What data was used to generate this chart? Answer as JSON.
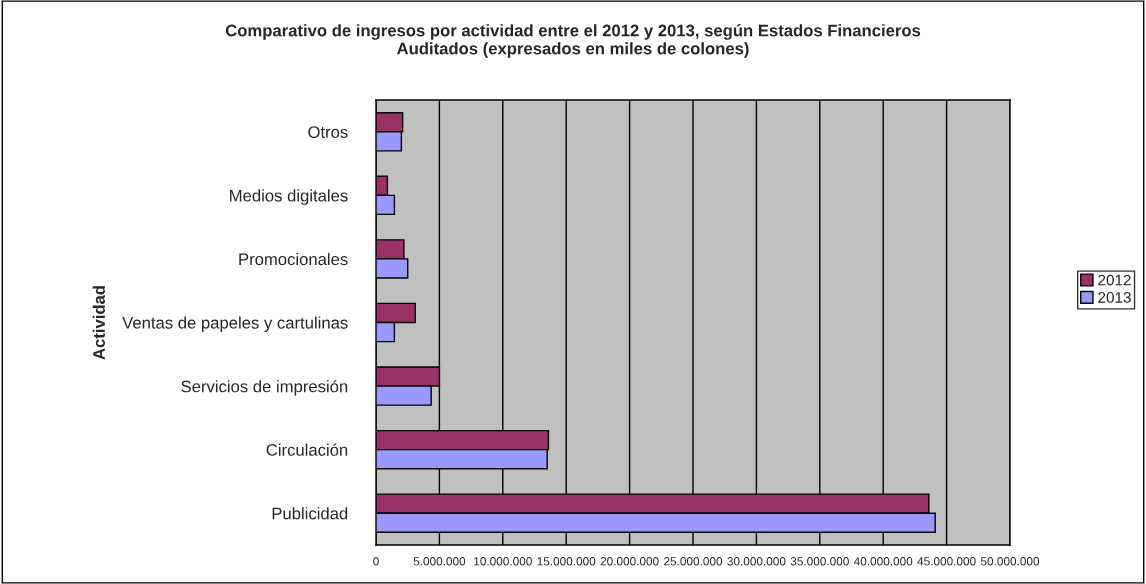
{
  "chart_data": {
    "type": "bar",
    "orientation": "horizontal",
    "title": "Comparativo de ingresos por actividad entre el 2012 y 2013, según Estados Financieros\nAuditados (expresados en miles de colones)",
    "ylabel": "Actividad",
    "categories": [
      "Otros",
      "Medios digitales",
      "Promocionales",
      "Ventas de papeles y cartulinas",
      "Servicios de impresión",
      "Circulación",
      "Publicidad"
    ],
    "series": [
      {
        "name": "2012",
        "color": "#993366",
        "values": [
          2100000,
          900000,
          2200000,
          3100000,
          5000000,
          13600000,
          43600000
        ]
      },
      {
        "name": "2013",
        "color": "#9999ff",
        "values": [
          2000000,
          1450000,
          2500000,
          1450000,
          4350000,
          13500000,
          44100000
        ]
      }
    ],
    "xlim": [
      0,
      50000000
    ],
    "xticks": [
      0,
      {
        "value": 5000000,
        "label": "5.000.000"
      },
      {
        "value": 10000000,
        "label": "10.000.000"
      },
      {
        "value": 15000000,
        "label": "15.000.000"
      },
      {
        "value": 20000000,
        "label": "20.000.000"
      },
      {
        "value": 25000000,
        "label": "25.000.000"
      },
      {
        "value": 30000000,
        "label": "30.000.000"
      },
      {
        "value": 35000000,
        "label": "35.000.000"
      },
      {
        "value": 40000000,
        "label": "40.000.000"
      },
      {
        "value": 45000000,
        "label": "45.000.000"
      },
      {
        "value": 50000000,
        "label": "50.000.000"
      }
    ],
    "grid": "x",
    "legend": "right"
  }
}
